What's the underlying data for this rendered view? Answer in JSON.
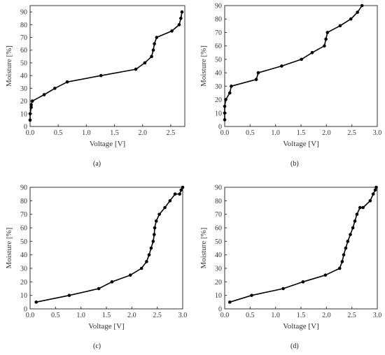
{
  "figure": {
    "panels": [
      {
        "label": "(a)"
      },
      {
        "label": "(b)"
      },
      {
        "label": "(c)"
      },
      {
        "label": "(d)"
      }
    ]
  },
  "chart_data": [
    {
      "type": "line",
      "xlabel": "Voltage [V]",
      "ylabel": "Moisture [%]",
      "xlim": [
        0,
        2.75
      ],
      "ylim": [
        0,
        95
      ],
      "xticks": [
        "0.0",
        "0.5",
        "1.0",
        "1.5",
        "2.0",
        "2.5"
      ],
      "xtick_values": [
        0,
        0.5,
        1.0,
        1.5,
        2.0,
        2.5
      ],
      "yticks": [
        "0",
        "10",
        "20",
        "30",
        "40",
        "50",
        "60",
        "70",
        "80",
        "90"
      ],
      "ytick_values": [
        0,
        10,
        20,
        30,
        40,
        50,
        60,
        70,
        80,
        90
      ],
      "series": [
        {
          "x": [
            0.0,
            0.0,
            0.02,
            0.02,
            0.04,
            0.25,
            0.44,
            0.66,
            1.26,
            1.88,
            2.04,
            2.16,
            2.19,
            2.21,
            2.25,
            2.52,
            2.65,
            2.68,
            2.7
          ],
          "y": [
            5,
            10,
            15,
            17,
            20,
            25,
            30,
            35,
            40,
            45,
            50,
            55,
            60,
            65,
            70,
            75,
            80,
            85,
            90
          ]
        }
      ],
      "grid": false
    },
    {
      "type": "line",
      "xlabel": "Voltage [V]",
      "ylabel": "Moisture [%]",
      "xlim": [
        0,
        3.0
      ],
      "ylim": [
        0,
        90
      ],
      "xticks": [
        "0.0",
        "0.5",
        "1.0",
        "1.5",
        "2.0",
        "2.5",
        "3.0"
      ],
      "xtick_values": [
        0,
        0.5,
        1.0,
        1.5,
        2.0,
        2.5,
        3.0
      ],
      "yticks": [
        "0",
        "10",
        "20",
        "30",
        "40",
        "50",
        "60",
        "70",
        "80",
        "90"
      ],
      "ytick_values": [
        0,
        10,
        20,
        30,
        40,
        50,
        60,
        70,
        80,
        90
      ],
      "series": [
        {
          "x": [
            0.0,
            0.0,
            0.0,
            0.02,
            0.1,
            0.13,
            0.62,
            0.66,
            1.12,
            1.51,
            1.72,
            1.96,
            1.99,
            2.02,
            2.27,
            2.48,
            2.61,
            2.7
          ],
          "y": [
            5,
            10,
            15,
            20,
            25,
            30,
            35,
            40,
            45,
            50,
            55,
            60,
            65,
            70,
            75,
            80,
            85,
            90
          ]
        }
      ],
      "grid": false
    },
    {
      "type": "line",
      "xlabel": "Voltage [V]",
      "ylabel": "Moisture [%]",
      "xlim": [
        0,
        3.0
      ],
      "ylim": [
        0,
        90
      ],
      "xticks": [
        "0.0",
        "0.5",
        "1.0",
        "1.5",
        "2.0",
        "2.5",
        "3.0"
      ],
      "xtick_values": [
        0,
        0.5,
        1.0,
        1.5,
        2.0,
        2.5,
        3.0
      ],
      "yticks": [
        "0",
        "10",
        "20",
        "30",
        "40",
        "50",
        "60",
        "70",
        "80",
        "90"
      ],
      "ytick_values": [
        0,
        10,
        20,
        30,
        40,
        50,
        60,
        70,
        80,
        90
      ],
      "series": [
        {
          "x": [
            0.12,
            0.77,
            1.35,
            1.61,
            1.97,
            2.19,
            2.29,
            2.34,
            2.38,
            2.42,
            2.44,
            2.45,
            2.48,
            2.54,
            2.65,
            2.75,
            2.85,
            2.94,
            2.97,
            3.0
          ],
          "y": [
            5,
            10,
            15,
            20,
            25,
            30,
            35,
            40,
            45,
            50,
            55,
            60,
            65,
            70,
            75,
            80,
            85,
            85,
            88,
            90
          ]
        }
      ],
      "grid": false
    },
    {
      "type": "line",
      "xlabel": "Voltage [V]",
      "ylabel": "Moisture [%]",
      "xlim": [
        0,
        3.0
      ],
      "ylim": [
        0,
        90
      ],
      "xticks": [
        "0.0",
        "0.5",
        "1.0",
        "1.5",
        "2.0",
        "2.5",
        "3.0"
      ],
      "xtick_values": [
        0,
        0.5,
        1.0,
        1.5,
        2.0,
        2.5,
        3.0
      ],
      "yticks": [
        "0",
        "10",
        "20",
        "30",
        "40",
        "50",
        "60",
        "70",
        "80",
        "90"
      ],
      "ytick_values": [
        0,
        10,
        20,
        30,
        40,
        50,
        60,
        70,
        80,
        90
      ],
      "series": [
        {
          "x": [
            0.1,
            0.53,
            1.15,
            1.54,
            1.98,
            2.26,
            2.31,
            2.34,
            2.38,
            2.42,
            2.47,
            2.52,
            2.56,
            2.6,
            2.66,
            2.72,
            2.86,
            2.92,
            2.96,
            2.98
          ],
          "y": [
            5,
            10,
            15,
            20,
            25,
            30,
            35,
            40,
            45,
            50,
            55,
            60,
            65,
            70,
            75,
            75,
            80,
            85,
            88,
            90
          ]
        }
      ],
      "grid": false
    }
  ]
}
